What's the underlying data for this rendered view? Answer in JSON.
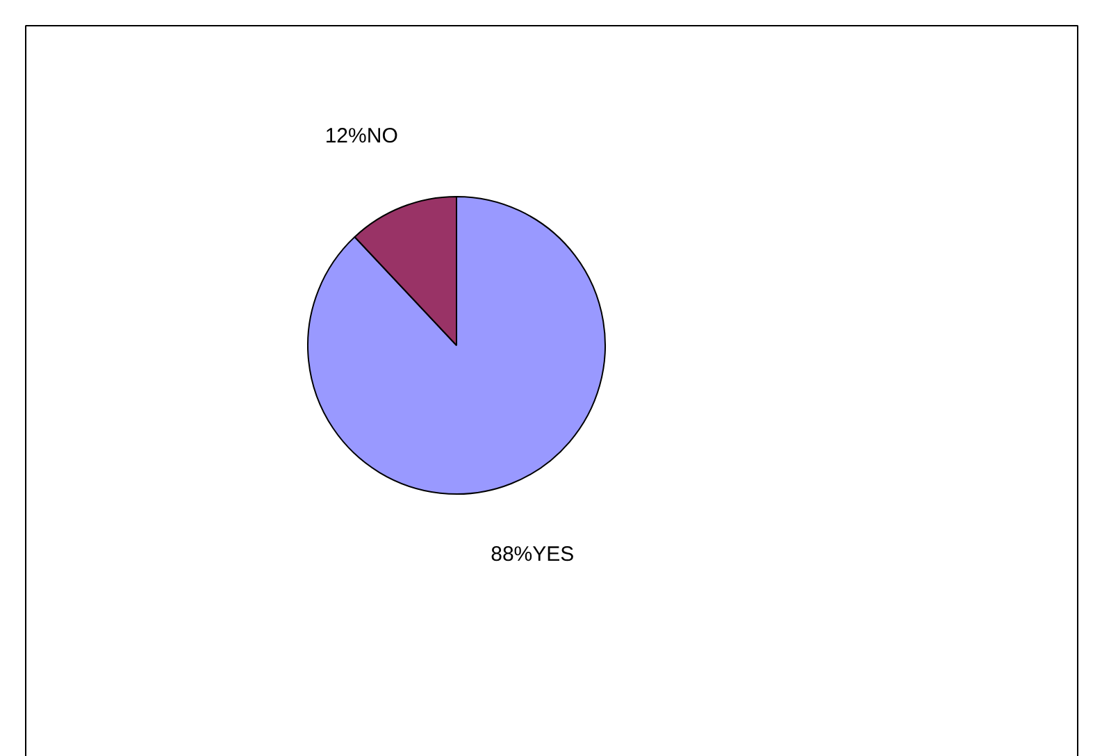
{
  "chart_data": {
    "type": "pie",
    "categories": [
      "YES",
      "NO"
    ],
    "values": [
      88,
      12
    ],
    "colors": [
      "#9999ff",
      "#993366"
    ],
    "value_labels": [
      "88%",
      "12%"
    ]
  }
}
